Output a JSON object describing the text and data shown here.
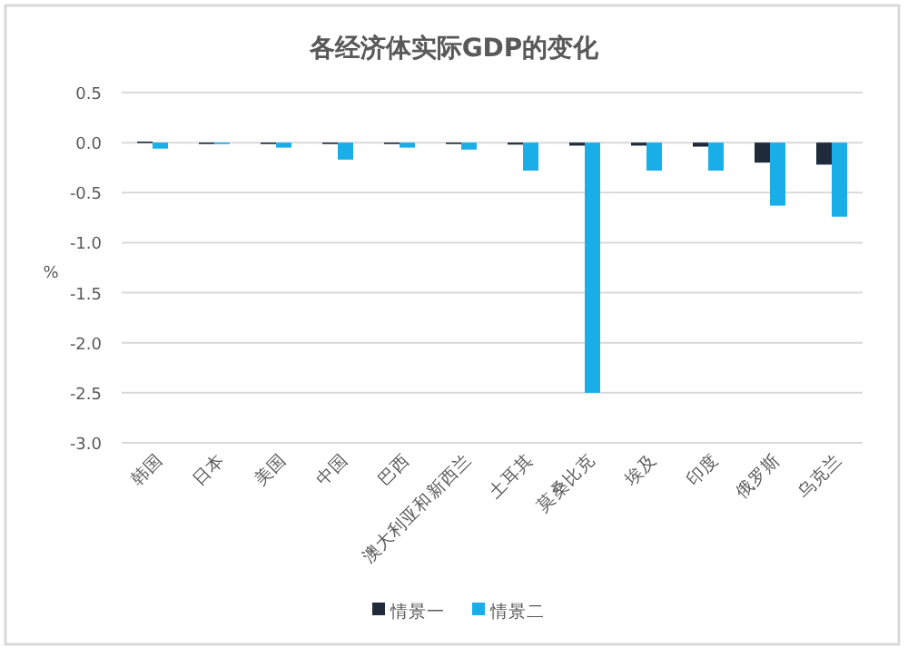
{
  "chart_data": {
    "type": "bar",
    "title": "各经济体实际GDP的变化",
    "ylabel": "%",
    "categories": [
      "韩国",
      "日本",
      "美国",
      "中国",
      "巴西",
      "澳大利亚和新西兰",
      "土耳其",
      "莫桑比克",
      "埃及",
      "印度",
      "俄罗斯",
      "乌克兰"
    ],
    "series": [
      {
        "name": "情景一",
        "color": "#1f2a3a",
        "values": [
          0.01,
          -0.01,
          -0.01,
          -0.01,
          -0.01,
          -0.01,
          -0.02,
          -0.03,
          -0.03,
          -0.04,
          -0.2,
          -0.22
        ]
      },
      {
        "name": "情景二",
        "color": "#1aaee8",
        "values": [
          -0.06,
          -0.01,
          -0.05,
          -0.17,
          -0.05,
          -0.07,
          -0.28,
          -2.5,
          -0.28,
          -0.28,
          -0.63,
          -0.74
        ]
      }
    ],
    "ylim": [
      -3.0,
      0.5
    ],
    "yticks": [
      {
        "value": 0.5,
        "label": "0.5"
      },
      {
        "value": 0,
        "label": "0.0"
      },
      {
        "value": -0.5,
        "label": "-0.5"
      },
      {
        "value": -1,
        "label": "-1.0"
      },
      {
        "value": -1.5,
        "label": "-1.5"
      },
      {
        "value": -2,
        "label": "-2.0"
      },
      {
        "value": -2.5,
        "label": "-2.5"
      },
      {
        "value": -3,
        "label": "-3.0"
      }
    ],
    "grid": "y",
    "legend": "bottom"
  }
}
